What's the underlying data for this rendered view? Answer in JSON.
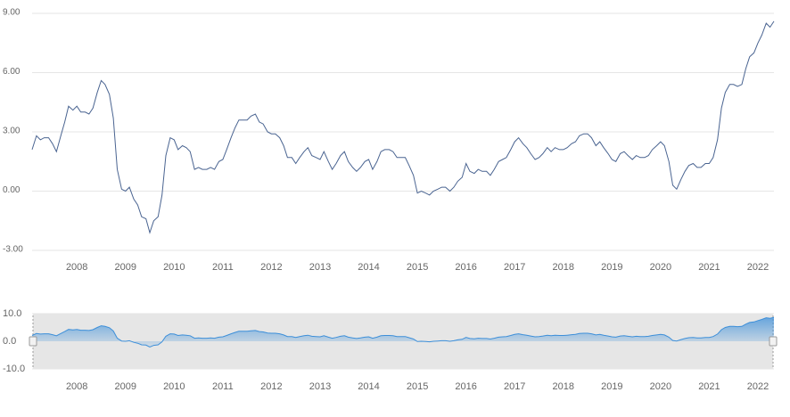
{
  "chart_data": {
    "type": "line",
    "xlim": [
      2007.08,
      2022.33
    ],
    "xticks": [
      2008,
      2009,
      2010,
      2011,
      2012,
      2013,
      2014,
      2015,
      2016,
      2017,
      2018,
      2019,
      2020,
      2021,
      2022
    ],
    "ylim": [
      -3,
      9
    ],
    "yticks": [
      {
        "value": -3,
        "label": "-3.00"
      },
      {
        "value": 0,
        "label": "0.00"
      },
      {
        "value": 3,
        "label": "3.00"
      },
      {
        "value": 6,
        "label": "6.00"
      },
      {
        "value": 9,
        "label": "9.00"
      }
    ],
    "grid": true,
    "color": "#4a6491",
    "navigator": {
      "ylim": [
        -10,
        10
      ],
      "yticks": [
        {
          "value": -10,
          "label": "-10.0"
        },
        {
          "value": 0,
          "label": "0.0"
        },
        {
          "value": 10,
          "label": "10.0"
        }
      ],
      "color": "#3d8fd9"
    },
    "x": [
      2007.08,
      2007.17,
      2007.25,
      2007.33,
      2007.42,
      2007.5,
      2007.58,
      2007.67,
      2007.75,
      2007.83,
      2007.92,
      2008,
      2008.08,
      2008.17,
      2008.25,
      2008.33,
      2008.42,
      2008.5,
      2008.58,
      2008.67,
      2008.75,
      2008.83,
      2008.92,
      2009,
      2009.08,
      2009.17,
      2009.25,
      2009.33,
      2009.42,
      2009.5,
      2009.58,
      2009.67,
      2009.75,
      2009.83,
      2009.92,
      2010,
      2010.08,
      2010.17,
      2010.25,
      2010.33,
      2010.42,
      2010.5,
      2010.58,
      2010.67,
      2010.75,
      2010.83,
      2010.92,
      2011,
      2011.08,
      2011.17,
      2011.25,
      2011.33,
      2011.42,
      2011.5,
      2011.58,
      2011.67,
      2011.75,
      2011.83,
      2011.92,
      2012,
      2012.08,
      2012.17,
      2012.25,
      2012.33,
      2012.42,
      2012.5,
      2012.58,
      2012.67,
      2012.75,
      2012.83,
      2012.92,
      2013,
      2013.08,
      2013.17,
      2013.25,
      2013.33,
      2013.42,
      2013.5,
      2013.58,
      2013.67,
      2013.75,
      2013.83,
      2013.92,
      2014,
      2014.08,
      2014.17,
      2014.25,
      2014.33,
      2014.42,
      2014.5,
      2014.58,
      2014.67,
      2014.75,
      2014.83,
      2014.92,
      2015,
      2015.08,
      2015.17,
      2015.25,
      2015.33,
      2015.42,
      2015.5,
      2015.58,
      2015.67,
      2015.75,
      2015.83,
      2015.92,
      2016,
      2016.08,
      2016.17,
      2016.25,
      2016.33,
      2016.42,
      2016.5,
      2016.58,
      2016.67,
      2016.75,
      2016.83,
      2016.92,
      2017,
      2017.08,
      2017.17,
      2017.25,
      2017.33,
      2017.42,
      2017.5,
      2017.58,
      2017.67,
      2017.75,
      2017.83,
      2017.92,
      2018,
      2018.08,
      2018.17,
      2018.25,
      2018.33,
      2018.42,
      2018.5,
      2018.58,
      2018.67,
      2018.75,
      2018.83,
      2018.92,
      2019,
      2019.08,
      2019.17,
      2019.25,
      2019.33,
      2019.42,
      2019.5,
      2019.58,
      2019.67,
      2019.75,
      2019.83,
      2019.92,
      2020,
      2020.08,
      2020.17,
      2020.25,
      2020.33,
      2020.42,
      2020.5,
      2020.58,
      2020.67,
      2020.75,
      2020.83,
      2020.92,
      2021,
      2021.08,
      2021.17,
      2021.25,
      2021.33,
      2021.42,
      2021.5,
      2021.58,
      2021.67,
      2021.75,
      2021.83,
      2021.92,
      2022,
      2022.08,
      2022.17,
      2022.25,
      2022.33
    ],
    "values": [
      2.1,
      2.8,
      2.6,
      2.7,
      2.7,
      2.4,
      2.0,
      2.8,
      3.5,
      4.3,
      4.1,
      4.3,
      4.0,
      4.0,
      3.9,
      4.2,
      5.0,
      5.6,
      5.4,
      4.9,
      3.7,
      1.1,
      0.1,
      0.0,
      0.2,
      -0.4,
      -0.7,
      -1.3,
      -1.4,
      -2.1,
      -1.5,
      -1.3,
      -0.2,
      1.8,
      2.7,
      2.6,
      2.1,
      2.3,
      2.2,
      2.0,
      1.1,
      1.2,
      1.1,
      1.1,
      1.2,
      1.1,
      1.5,
      1.6,
      2.1,
      2.7,
      3.2,
      3.6,
      3.6,
      3.6,
      3.8,
      3.9,
      3.5,
      3.4,
      3.0,
      2.9,
      2.9,
      2.7,
      2.3,
      1.7,
      1.7,
      1.4,
      1.7,
      2.0,
      2.2,
      1.8,
      1.7,
      1.6,
      2.0,
      1.5,
      1.1,
      1.4,
      1.8,
      2.0,
      1.5,
      1.2,
      1.0,
      1.2,
      1.5,
      1.6,
      1.1,
      1.5,
      2.0,
      2.1,
      2.1,
      2.0,
      1.7,
      1.7,
      1.7,
      1.3,
      0.8,
      -0.1,
      0.0,
      -0.1,
      -0.2,
      0.0,
      0.1,
      0.2,
      0.2,
      0.0,
      0.2,
      0.5,
      0.7,
      1.4,
      1.0,
      0.9,
      1.1,
      1.0,
      1.0,
      0.8,
      1.1,
      1.5,
      1.6,
      1.7,
      2.1,
      2.5,
      2.7,
      2.4,
      2.2,
      1.9,
      1.6,
      1.7,
      1.9,
      2.2,
      2.0,
      2.2,
      2.1,
      2.1,
      2.2,
      2.4,
      2.5,
      2.8,
      2.9,
      2.9,
      2.7,
      2.3,
      2.5,
      2.2,
      1.9,
      1.6,
      1.5,
      1.9,
      2.0,
      1.8,
      1.6,
      1.8,
      1.7,
      1.7,
      1.8,
      2.1,
      2.3,
      2.5,
      2.3,
      1.5,
      0.3,
      0.1,
      0.6,
      1.0,
      1.3,
      1.4,
      1.2,
      1.2,
      1.4,
      1.4,
      1.7,
      2.6,
      4.2,
      5.0,
      5.4,
      5.4,
      5.3,
      5.4,
      6.2,
      6.8,
      7.0,
      7.5,
      7.9,
      8.5,
      8.3,
      8.6
    ]
  }
}
